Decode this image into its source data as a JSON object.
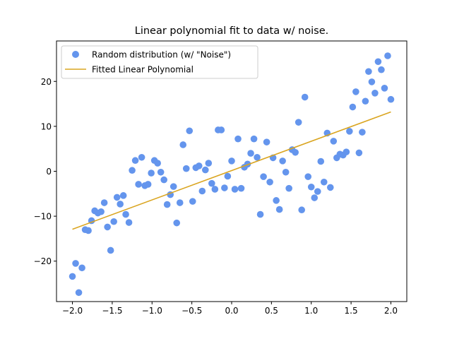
{
  "chart_data": {
    "type": "scatter",
    "title": "Linear polynomial fit to data w/ noise.",
    "xlabel": "",
    "ylabel": "",
    "xlim": [
      -2.2,
      2.2
    ],
    "ylim": [
      -29,
      29
    ],
    "xticks": [
      -2.0,
      -1.5,
      -1.0,
      -0.5,
      0.0,
      0.5,
      1.0,
      1.5,
      2.0
    ],
    "xtick_labels": [
      "−2.0",
      "−1.5",
      "−1.0",
      "−0.5",
      "0.0",
      "0.5",
      "1.0",
      "1.5",
      "2.0"
    ],
    "yticks": [
      -20,
      -10,
      0,
      10,
      20
    ],
    "ytick_labels": [
      "−20",
      "−10",
      "0",
      "10",
      "20"
    ],
    "grid": false,
    "legend_position": "top-left",
    "colors": {
      "scatter": "#6495ED",
      "line": "#DAA520"
    },
    "series": [
      {
        "name": "Random distribution (w/ \"Noise\")",
        "kind": "scatter",
        "points": [
          [
            -2.0,
            -23.4
          ],
          [
            -1.96,
            -20.5
          ],
          [
            -1.92,
            -27.0
          ],
          [
            -1.88,
            -21.5
          ],
          [
            -1.84,
            -13.0
          ],
          [
            -1.8,
            -13.2
          ],
          [
            -1.76,
            -11.0
          ],
          [
            -1.72,
            -8.8
          ],
          [
            -1.68,
            -9.3
          ],
          [
            -1.64,
            -9.0
          ],
          [
            -1.6,
            -7.0
          ],
          [
            -1.56,
            -12.4
          ],
          [
            -1.52,
            -17.6
          ],
          [
            -1.48,
            -11.2
          ],
          [
            -1.44,
            -5.8
          ],
          [
            -1.4,
            -7.3
          ],
          [
            -1.36,
            -5.4
          ],
          [
            -1.33,
            -9.6
          ],
          [
            -1.29,
            -11.4
          ],
          [
            -1.25,
            0.2
          ],
          [
            -1.21,
            2.4
          ],
          [
            -1.17,
            -2.9
          ],
          [
            -1.13,
            3.1
          ],
          [
            -1.09,
            -3.2
          ],
          [
            -1.05,
            -2.9
          ],
          [
            -1.01,
            -0.4
          ],
          [
            -0.97,
            2.4
          ],
          [
            -0.93,
            1.8
          ],
          [
            -0.89,
            -0.2
          ],
          [
            -0.85,
            -1.9
          ],
          [
            -0.81,
            -7.4
          ],
          [
            -0.77,
            -5.2
          ],
          [
            -0.73,
            -3.4
          ],
          [
            -0.69,
            -11.5
          ],
          [
            -0.65,
            -7.0
          ],
          [
            -0.61,
            5.9
          ],
          [
            -0.57,
            0.6
          ],
          [
            -0.53,
            9.0
          ],
          [
            -0.49,
            -6.7
          ],
          [
            -0.45,
            0.8
          ],
          [
            -0.41,
            1.2
          ],
          [
            -0.37,
            -4.4
          ],
          [
            -0.33,
            0.3
          ],
          [
            -0.29,
            1.8
          ],
          [
            -0.25,
            -2.7
          ],
          [
            -0.21,
            -4.0
          ],
          [
            -0.17,
            9.2
          ],
          [
            -0.13,
            9.2
          ],
          [
            -0.09,
            -3.7
          ],
          [
            -0.05,
            -1.1
          ],
          [
            0.0,
            2.3
          ],
          [
            0.04,
            -4.0
          ],
          [
            0.08,
            7.2
          ],
          [
            0.12,
            -3.8
          ],
          [
            0.16,
            0.9
          ],
          [
            0.2,
            1.6
          ],
          [
            0.24,
            4.0
          ],
          [
            0.28,
            7.2
          ],
          [
            0.32,
            3.1
          ],
          [
            0.36,
            -9.6
          ],
          [
            0.4,
            -1.2
          ],
          [
            0.44,
            6.5
          ],
          [
            0.48,
            -2.4
          ],
          [
            0.52,
            3.0
          ],
          [
            0.56,
            -6.5
          ],
          [
            0.6,
            -8.5
          ],
          [
            0.64,
            2.3
          ],
          [
            0.68,
            -0.2
          ],
          [
            0.72,
            -3.8
          ],
          [
            0.76,
            4.8
          ],
          [
            0.8,
            4.2
          ],
          [
            0.84,
            10.9
          ],
          [
            0.88,
            -8.6
          ],
          [
            0.92,
            16.5
          ],
          [
            0.96,
            -1.2
          ],
          [
            1.0,
            -3.5
          ],
          [
            1.04,
            -5.9
          ],
          [
            1.08,
            -4.5
          ],
          [
            1.12,
            2.2
          ],
          [
            1.16,
            -2.4
          ],
          [
            1.2,
            8.5
          ],
          [
            1.24,
            -3.6
          ],
          [
            1.28,
            6.7
          ],
          [
            1.32,
            3.0
          ],
          [
            1.36,
            3.8
          ],
          [
            1.4,
            3.6
          ],
          [
            1.44,
            4.3
          ],
          [
            1.48,
            8.9
          ],
          [
            1.52,
            14.3
          ],
          [
            1.56,
            17.7
          ],
          [
            1.6,
            4.1
          ],
          [
            1.64,
            8.7
          ],
          [
            1.68,
            15.6
          ],
          [
            1.72,
            22.2
          ],
          [
            1.76,
            19.9
          ],
          [
            1.8,
            17.4
          ],
          [
            1.84,
            24.4
          ],
          [
            1.88,
            22.6
          ],
          [
            1.92,
            18.5
          ],
          [
            1.96,
            25.7
          ],
          [
            2.0,
            16.0
          ]
        ]
      },
      {
        "name": "Fitted Linear Polynomial",
        "kind": "line",
        "points": [
          [
            -2.0,
            -12.9
          ],
          [
            2.0,
            13.2
          ]
        ]
      }
    ]
  }
}
